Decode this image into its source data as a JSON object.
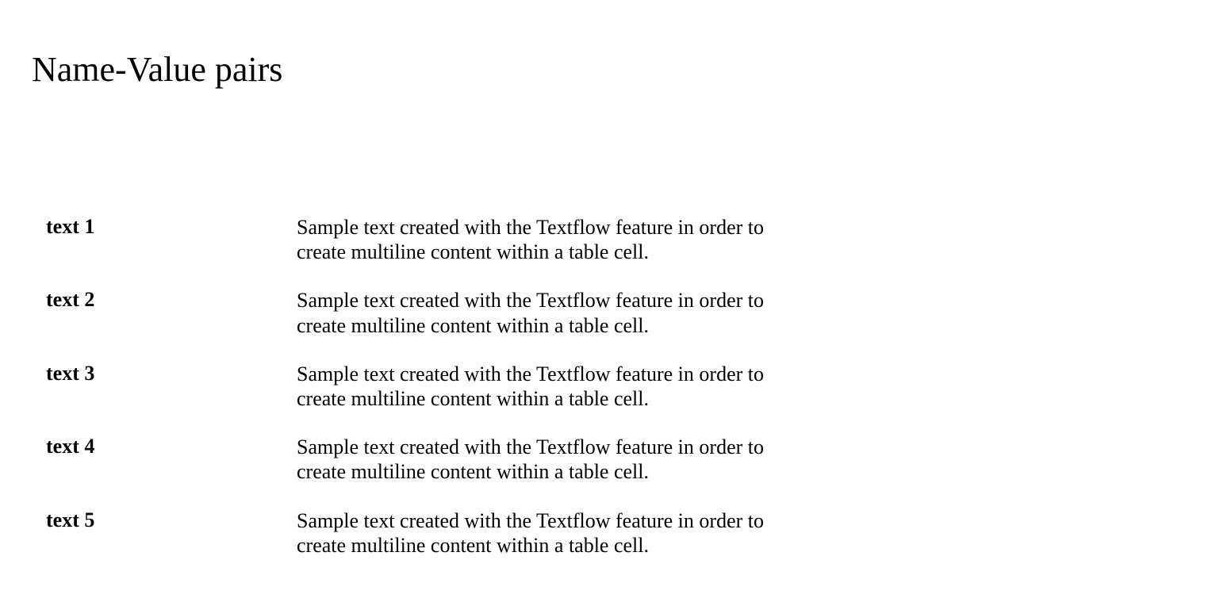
{
  "title": "Name-Value pairs",
  "colors": {
    "background": "#ffffff",
    "text": "#000000"
  },
  "typography": {
    "title_fontsize": 44,
    "body_fontsize": 26,
    "name_weight": "bold",
    "value_weight": "normal",
    "font_family": "serif"
  },
  "layout": {
    "name_column_width": 316,
    "value_max_width": 650,
    "row_spacing": 30
  },
  "pairs": [
    {
      "name": "text 1",
      "value": "Sample text created with the Textflow feature in order to create multiline content within a table cell."
    },
    {
      "name": "text 2",
      "value": "Sample text created with the Textflow feature in order to create multiline content within a table cell."
    },
    {
      "name": "text 3",
      "value": "Sample text created with the Textflow feature in order to create multiline content within a table cell."
    },
    {
      "name": "text 4",
      "value": "Sample text created with the Textflow feature in order to create multiline content within a table cell."
    },
    {
      "name": "text 5",
      "value": "Sample text created with the Textflow feature in order to create multiline content within a table cell."
    }
  ]
}
